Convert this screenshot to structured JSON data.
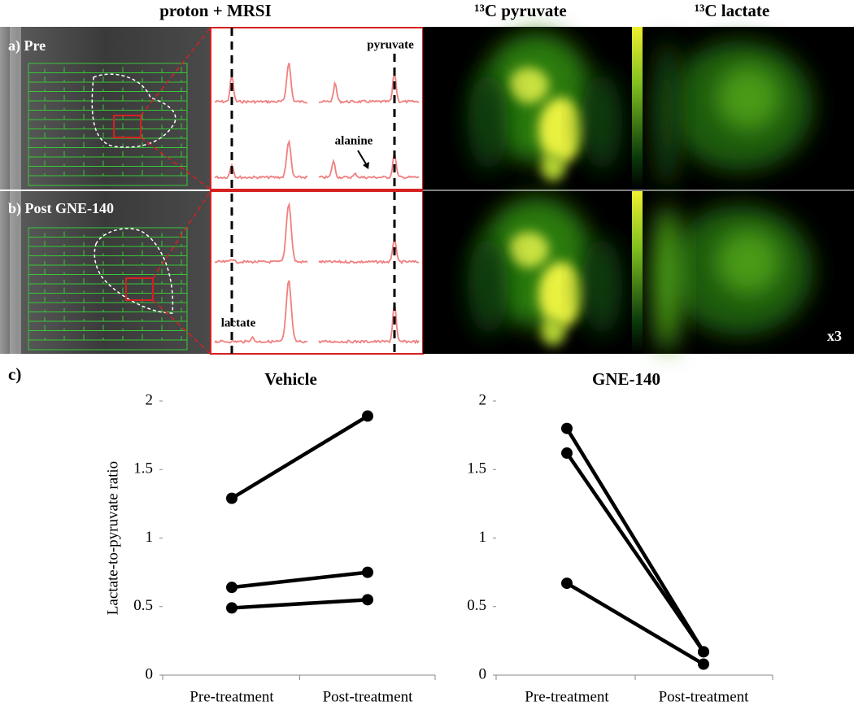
{
  "header": {
    "columns": [
      "proton + MRSI",
      "¹³C pyruvate",
      "¹³C lactate"
    ]
  },
  "panels": {
    "a": "a) Pre",
    "b": "b) Post GNE-140",
    "c": "c)"
  },
  "annotations": {
    "pyruvate": "pyruvate",
    "alanine": "alanine",
    "lactate": "lactate",
    "scale": "x3"
  },
  "chart_data": [
    {
      "type": "line",
      "title": "Vehicle",
      "y_label": "Lactate-to-pyruvate ratio",
      "categories": [
        "Pre-treatment",
        "Post-treatment"
      ],
      "ylim": [
        0,
        2
      ],
      "yticks": [
        0,
        0.5,
        1,
        1.5,
        2
      ],
      "series": [
        {
          "color": "#000000",
          "values": [
            1.29,
            1.89
          ]
        },
        {
          "color": "#000000",
          "values": [
            0.64,
            0.75
          ]
        },
        {
          "color": "#000000",
          "values": [
            0.49,
            0.55
          ]
        }
      ]
    },
    {
      "type": "line",
      "title": "GNE-140",
      "categories": [
        "Pre-treatment",
        "Post-treatment"
      ],
      "ylim": [
        0,
        2
      ],
      "yticks": [
        0,
        0.5,
        1,
        1.5,
        2
      ],
      "series": [
        {
          "color": "#000000",
          "values": [
            1.8,
            0.17
          ]
        },
        {
          "color": "#000000",
          "values": [
            1.62,
            0.17
          ]
        },
        {
          "color": "#000000",
          "values": [
            0.67,
            0.08
          ]
        }
      ]
    }
  ]
}
